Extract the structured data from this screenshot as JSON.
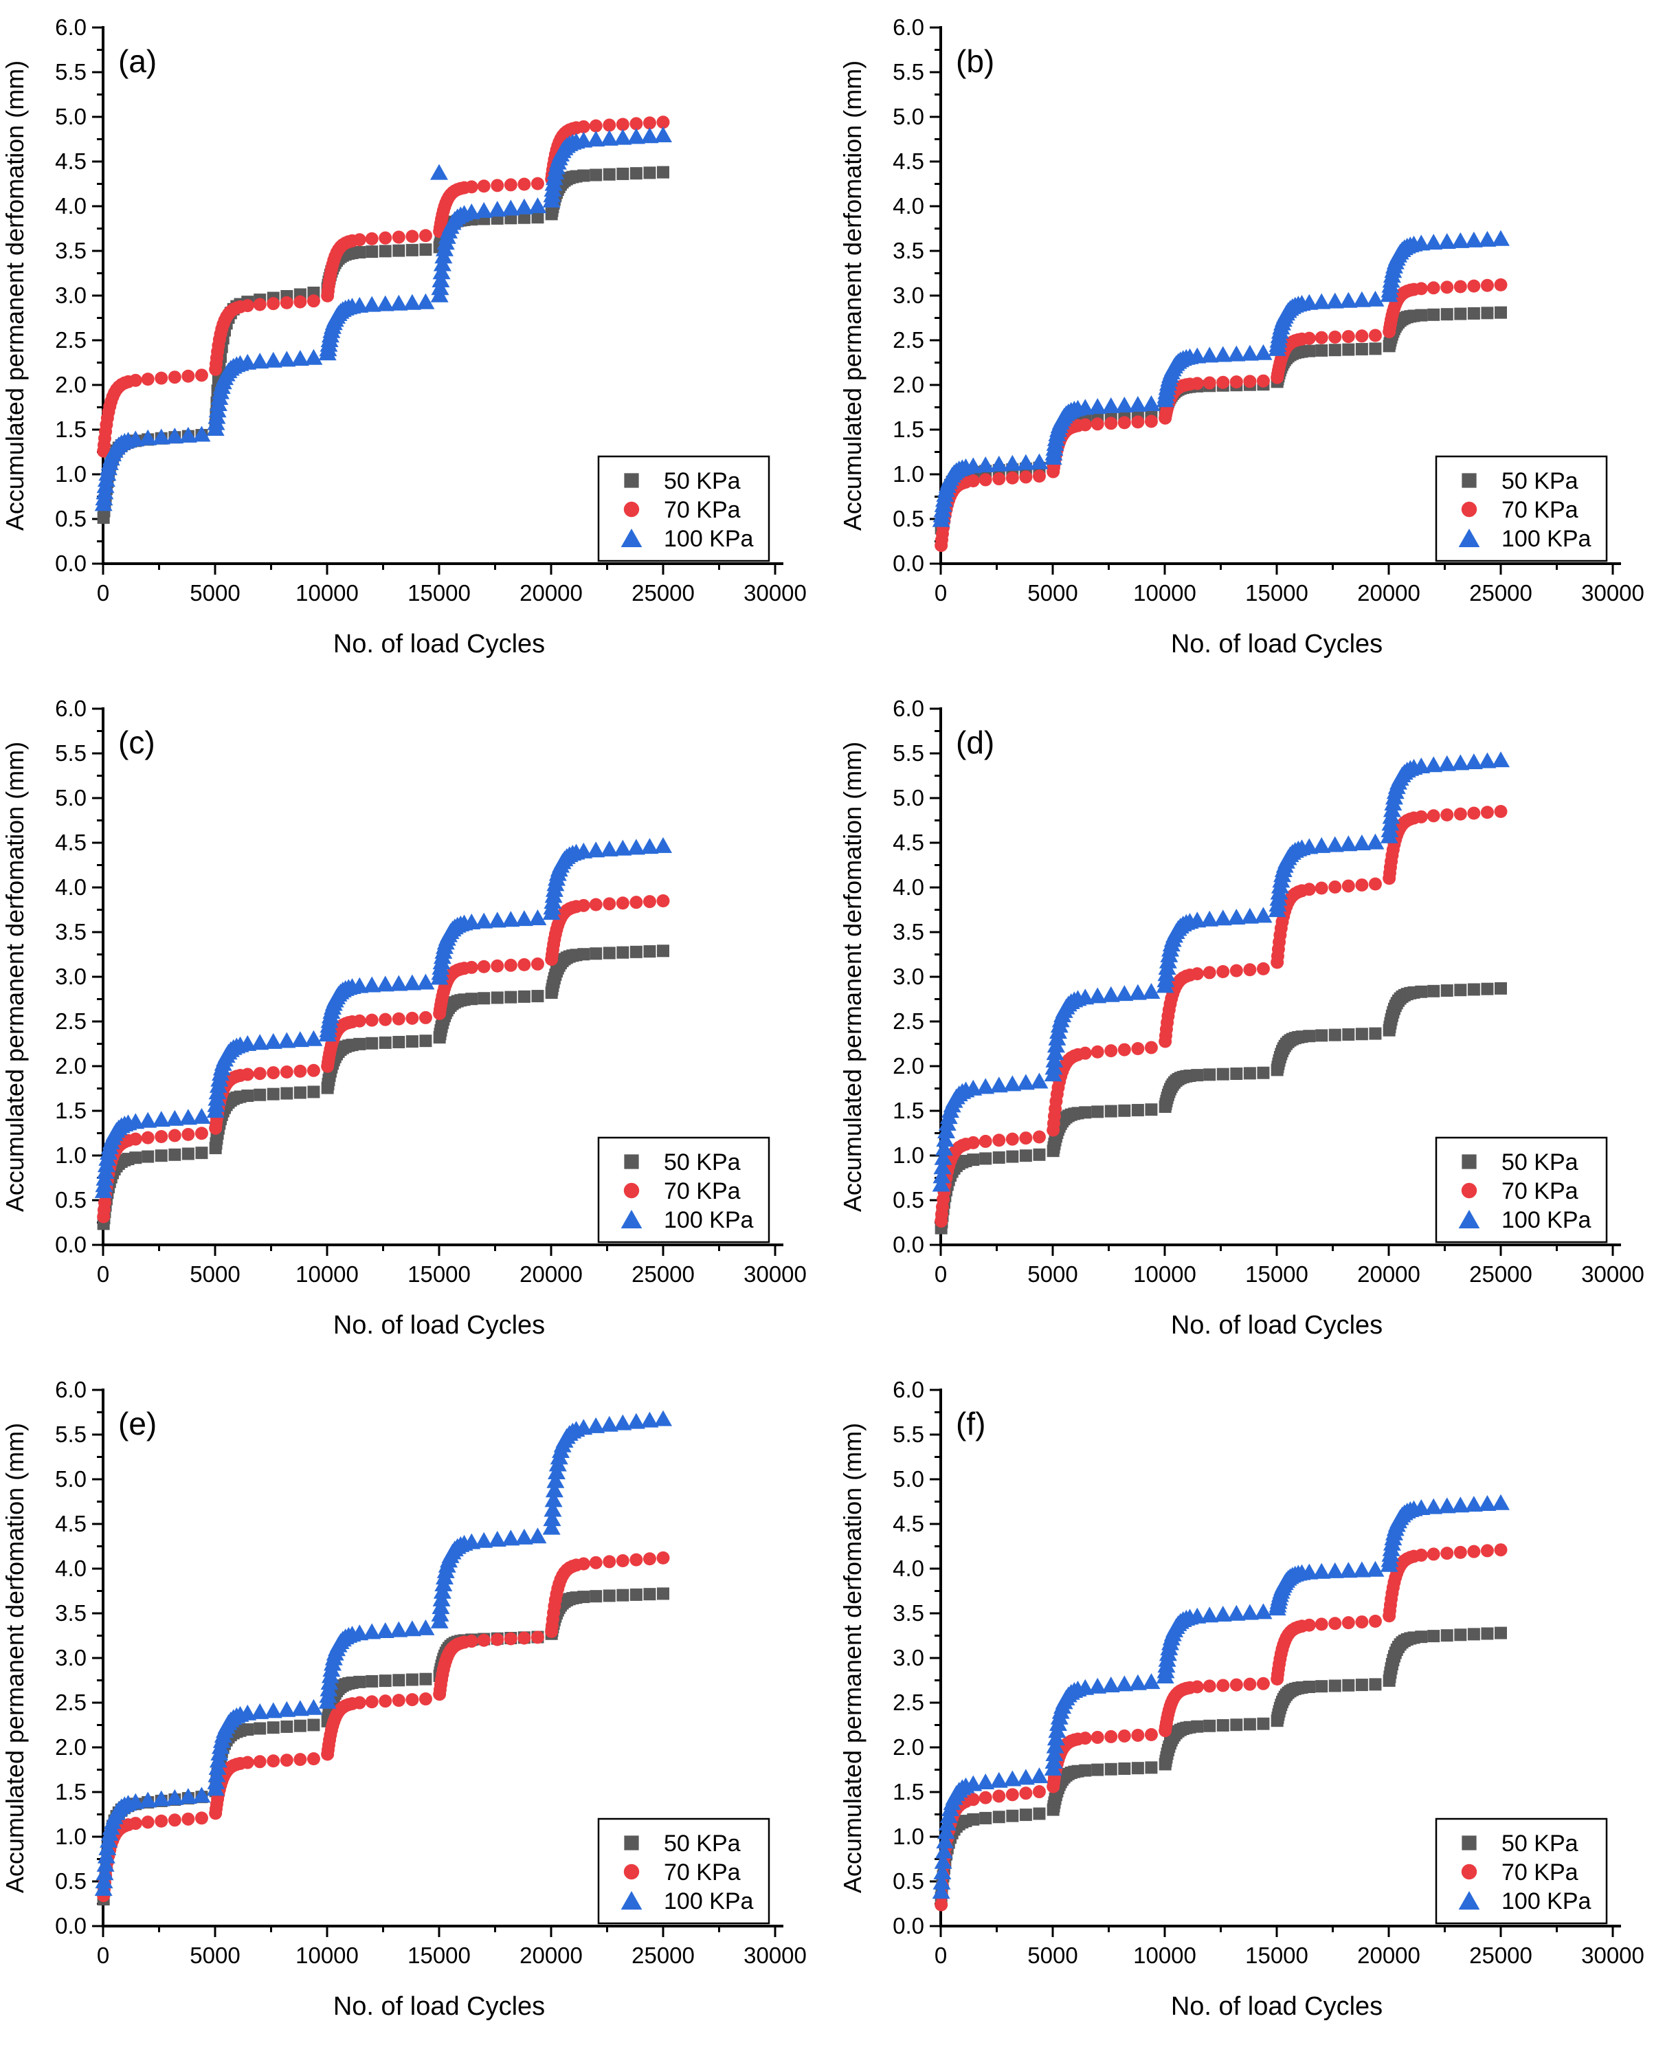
{
  "figure": {
    "kind": "6-panel scatter figure",
    "xlabel": "No. of load Cycles",
    "ylabel": "Accumulated permanent derfomation (mm)",
    "xlim": [
      0,
      30000
    ],
    "ylim": [
      0.0,
      6.0
    ],
    "x_major_ticks": [
      0,
      5000,
      10000,
      15000,
      20000,
      25000,
      30000
    ],
    "x_minor_step": 2500,
    "y_major_ticks": [
      0.0,
      0.5,
      1.0,
      1.5,
      2.0,
      2.5,
      3.0,
      3.5,
      4.0,
      4.5,
      5.0,
      5.5,
      6.0
    ],
    "y_minor_step": 0.25,
    "grid": "off",
    "axes_style": "L-shaped, ticks outward, no top/right frame",
    "colors": {
      "series_50": "#595959",
      "series_70": "#EA3B40",
      "series_100": "#2A6BD9",
      "axis": "#000000",
      "background": "#ffffff"
    }
  },
  "legend": {
    "position": "lower-right inside plot",
    "entries": [
      {
        "label": "50 KPa",
        "marker": "square",
        "color": "#595959"
      },
      {
        "label": "70 KPa",
        "marker": "circle",
        "color": "#EA3B40"
      },
      {
        "label": "100 KPa",
        "marker": "triangle",
        "color": "#2A6BD9"
      }
    ]
  },
  "chart_data": [
    {
      "type": "scatter",
      "panel": "(a)",
      "xlabel": "No. of load Cycles",
      "ylabel": "Accumulated permanent derfomation (mm)",
      "xlim": [
        0,
        30000
      ],
      "ylim": [
        0.0,
        6.0
      ],
      "pattern": "multi-stage cyclic loading: each 5000-cycle stage shows rapid accumulation then plateau; values below are deformation (mm) at start and at end of each stage",
      "stage_length": 5000,
      "stage_starts": [
        0,
        5000,
        10000,
        15000,
        20000
      ],
      "series": [
        {
          "name": "50 KPa",
          "marker": "square",
          "color": "#595959",
          "initial": 0.45,
          "stage_end_values": [
            1.45,
            3.05,
            3.52,
            3.88,
            4.38
          ]
        },
        {
          "name": "70 KPa",
          "marker": "circle",
          "color": "#EA3B40",
          "initial": 1.2,
          "stage_end_values": [
            2.12,
            2.95,
            3.68,
            4.26,
            4.94
          ]
        },
        {
          "name": "100 KPa",
          "marker": "triangle",
          "color": "#2A6BD9",
          "initial": 0.62,
          "stage_end_values": [
            1.46,
            2.32,
            2.94,
            4.02,
            4.8
          ],
          "outliers": [
            [
              15000,
              4.38
            ]
          ]
        }
      ]
    },
    {
      "type": "scatter",
      "panel": "(b)",
      "xlabel": "No. of load Cycles",
      "ylabel": "Accumulated permanent derfomation (mm)",
      "xlim": [
        0,
        30000
      ],
      "ylim": [
        0.0,
        6.0
      ],
      "pattern": "multi-stage cyclic loading: each 5000-cycle stage shows rapid accumulation then plateau",
      "stage_length": 5000,
      "stage_starts": [
        0,
        5000,
        10000,
        15000,
        20000
      ],
      "series": [
        {
          "name": "50 KPa",
          "marker": "square",
          "color": "#595959",
          "initial": 0.35,
          "stage_end_values": [
            1.08,
            1.68,
            2.01,
            2.41,
            2.81
          ]
        },
        {
          "name": "70 KPa",
          "marker": "circle",
          "color": "#EA3B40",
          "initial": 0.15,
          "stage_end_values": [
            0.99,
            1.6,
            2.05,
            2.56,
            3.12
          ]
        },
        {
          "name": "100 KPa",
          "marker": "triangle",
          "color": "#2A6BD9",
          "initial": 0.45,
          "stage_end_values": [
            1.15,
            1.8,
            2.37,
            2.97,
            3.64
          ]
        }
      ]
    },
    {
      "type": "scatter",
      "panel": "(c)",
      "xlabel": "No. of load Cycles",
      "ylabel": "Accumulated permanent derfomation (mm)",
      "xlim": [
        0,
        30000
      ],
      "ylim": [
        0.0,
        6.0
      ],
      "pattern": "multi-stage cyclic loading: each 5000-cycle stage shows rapid accumulation then plateau",
      "stage_length": 5000,
      "stage_starts": [
        0,
        5000,
        10000,
        15000,
        20000
      ],
      "series": [
        {
          "name": "50 KPa",
          "marker": "square",
          "color": "#595959",
          "initial": 0.18,
          "stage_end_values": [
            1.04,
            1.72,
            2.29,
            2.79,
            3.29
          ]
        },
        {
          "name": "70 KPa",
          "marker": "circle",
          "color": "#EA3B40",
          "initial": 0.25,
          "stage_end_values": [
            1.26,
            1.96,
            2.55,
            3.15,
            3.85
          ]
        },
        {
          "name": "100 KPa",
          "marker": "triangle",
          "color": "#2A6BD9",
          "initial": 0.55,
          "stage_end_values": [
            1.45,
            2.32,
            2.95,
            3.67,
            4.47
          ]
        }
      ]
    },
    {
      "type": "scatter",
      "panel": "(d)",
      "xlabel": "No. of load Cycles",
      "ylabel": "Accumulated permanent derfomation (mm)",
      "xlim": [
        0,
        30000
      ],
      "ylim": [
        0.0,
        6.0
      ],
      "pattern": "multi-stage cyclic loading: each 5000-cycle stage shows rapid accumulation then plateau",
      "stage_length": 5000,
      "stage_starts": [
        0,
        5000,
        10000,
        15000,
        20000
      ],
      "series": [
        {
          "name": "50 KPa",
          "marker": "square",
          "color": "#595959",
          "initial": 0.13,
          "stage_end_values": [
            1.02,
            1.52,
            1.93,
            2.37,
            2.87
          ]
        },
        {
          "name": "70 KPa",
          "marker": "circle",
          "color": "#EA3B40",
          "initial": 0.2,
          "stage_end_values": [
            1.22,
            2.22,
            3.1,
            4.05,
            4.85
          ]
        },
        {
          "name": "100 KPa",
          "marker": "triangle",
          "color": "#2A6BD9",
          "initial": 0.6,
          "stage_end_values": [
            1.85,
            2.85,
            3.7,
            4.52,
            5.43
          ]
        }
      ]
    },
    {
      "type": "scatter",
      "panel": "(e)",
      "xlabel": "No. of load Cycles",
      "ylabel": "Accumulated permanent derfomation (mm)",
      "xlim": [
        0,
        30000
      ],
      "ylim": [
        0.0,
        6.0
      ],
      "pattern": "multi-stage cyclic loading: each 5000-cycle stage shows rapid accumulation then plateau",
      "stage_length": 5000,
      "stage_starts": [
        0,
        5000,
        10000,
        15000,
        20000
      ],
      "series": [
        {
          "name": "50 KPa",
          "marker": "square",
          "color": "#595959",
          "initial": 0.22,
          "stage_end_values": [
            1.46,
            2.26,
            2.77,
            3.24,
            3.72
          ]
        },
        {
          "name": "70 KPa",
          "marker": "circle",
          "color": "#EA3B40",
          "initial": 0.28,
          "stage_end_values": [
            1.22,
            1.88,
            2.55,
            3.24,
            4.12
          ]
        },
        {
          "name": "100 KPa",
          "marker": "triangle",
          "color": "#2A6BD9",
          "initial": 0.35,
          "stage_end_values": [
            1.48,
            2.46,
            3.35,
            4.38,
            5.68
          ]
        }
      ]
    },
    {
      "type": "scatter",
      "panel": "(f)",
      "xlabel": "No. of load Cycles",
      "ylabel": "Accumulated permanent derfomation (mm)",
      "xlim": [
        0,
        30000
      ],
      "ylim": [
        0.0,
        6.0
      ],
      "pattern": "multi-stage cyclic loading: each 5000-cycle stage shows rapid accumulation then plateau",
      "stage_length": 5000,
      "stage_starts": [
        0,
        5000,
        10000,
        15000,
        20000
      ],
      "series": [
        {
          "name": "50 KPa",
          "marker": "square",
          "color": "#595959",
          "initial": 0.25,
          "stage_end_values": [
            1.27,
            1.78,
            2.27,
            2.71,
            3.28
          ]
        },
        {
          "name": "70 KPa",
          "marker": "circle",
          "color": "#EA3B40",
          "initial": 0.15,
          "stage_end_values": [
            1.52,
            2.15,
            2.72,
            3.42,
            4.21
          ]
        },
        {
          "name": "100 KPa",
          "marker": "triangle",
          "color": "#2A6BD9",
          "initial": 0.3,
          "stage_end_values": [
            1.7,
            2.75,
            3.53,
            4.0,
            4.74
          ]
        }
      ]
    }
  ]
}
